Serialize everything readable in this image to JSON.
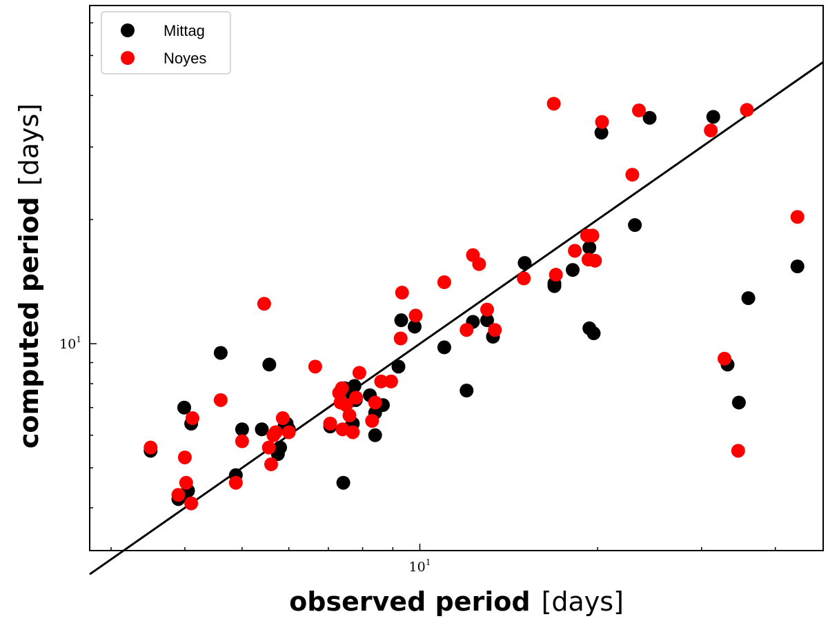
{
  "chart_data": {
    "type": "scatter",
    "title": "",
    "xlabel": "observed period",
    "xlabel_unit": "[days]",
    "ylabel": "computed period",
    "ylabel_unit": "[days]",
    "xscale": "log",
    "yscale": "log",
    "xlim": [
      2.76,
      48.2
    ],
    "ylim": [
      3.15,
      66.1
    ],
    "x_ticks": [
      {
        "value": 10,
        "base": "10",
        "exp": "1"
      }
    ],
    "y_ticks": [
      {
        "value": 10,
        "base": "10",
        "exp": "1"
      }
    ],
    "grid": false,
    "legend_position": "top-left",
    "fit_line": {
      "name": "y = x",
      "x": [
        2.76,
        48.2
      ],
      "y": [
        2.76,
        48.2
      ],
      "color": "#000000"
    },
    "series": [
      {
        "name": "Mittag",
        "color": "#000000",
        "points": [
          [
            3.5,
            5.5
          ],
          [
            3.9,
            4.2
          ],
          [
            4.0,
            4.3
          ],
          [
            4.05,
            4.4
          ],
          [
            3.99,
            7.0
          ],
          [
            4.1,
            6.4
          ],
          [
            4.6,
            9.5
          ],
          [
            4.88,
            4.8
          ],
          [
            5.0,
            6.2
          ],
          [
            5.4,
            6.2
          ],
          [
            5.56,
            8.9
          ],
          [
            5.75,
            5.4
          ],
          [
            5.8,
            5.6
          ],
          [
            5.9,
            6.3
          ],
          [
            5.95,
            6.4
          ],
          [
            6.0,
            6.2
          ],
          [
            7.05,
            6.4
          ],
          [
            7.05,
            6.3
          ],
          [
            7.42,
            4.6
          ],
          [
            7.46,
            7.8
          ],
          [
            7.65,
            6.3
          ],
          [
            7.6,
            7.7
          ],
          [
            7.68,
            7.3
          ],
          [
            7.7,
            6.4
          ],
          [
            7.79,
            7.3
          ],
          [
            7.75,
            7.9
          ],
          [
            8.23,
            7.5
          ],
          [
            8.4,
            6.0
          ],
          [
            8.4,
            6.8
          ],
          [
            8.53,
            7.1
          ],
          [
            8.66,
            7.1
          ],
          [
            9.2,
            8.8
          ],
          [
            9.3,
            11.4
          ],
          [
            9.8,
            11.0
          ],
          [
            11.0,
            9.8
          ],
          [
            12.0,
            7.7
          ],
          [
            12.3,
            11.3
          ],
          [
            13.0,
            11.4
          ],
          [
            13.3,
            10.4
          ],
          [
            15.05,
            15.7
          ],
          [
            16.9,
            13.8
          ],
          [
            16.9,
            14.0
          ],
          [
            18.15,
            15.1
          ],
          [
            19.37,
            10.9
          ],
          [
            19.37,
            17.1
          ],
          [
            19.7,
            10.6
          ],
          [
            20.3,
            32.5
          ],
          [
            23.13,
            19.4
          ],
          [
            24.5,
            35.3
          ],
          [
            31.4,
            35.5
          ],
          [
            33.2,
            8.9
          ],
          [
            34.7,
            7.2
          ],
          [
            36.0,
            12.9
          ],
          [
            43.6,
            15.4
          ]
        ]
      },
      {
        "name": "Noyes",
        "color": "#ff0000",
        "points": [
          [
            3.5,
            5.6
          ],
          [
            3.9,
            4.3
          ],
          [
            4.0,
            5.3
          ],
          [
            4.02,
            4.6
          ],
          [
            4.1,
            4.1
          ],
          [
            4.12,
            6.6
          ],
          [
            4.6,
            7.3
          ],
          [
            4.88,
            4.6
          ],
          [
            5.0,
            5.8
          ],
          [
            5.45,
            12.5
          ],
          [
            5.55,
            5.6
          ],
          [
            5.6,
            5.1
          ],
          [
            5.65,
            6.0
          ],
          [
            5.7,
            6.1
          ],
          [
            5.86,
            6.6
          ],
          [
            6.0,
            6.1
          ],
          [
            6.65,
            8.8
          ],
          [
            7.05,
            6.4
          ],
          [
            7.3,
            7.6
          ],
          [
            7.34,
            7.2
          ],
          [
            7.38,
            7.8
          ],
          [
            7.4,
            6.2
          ],
          [
            7.5,
            7.1
          ],
          [
            7.6,
            6.7
          ],
          [
            7.7,
            6.1
          ],
          [
            7.8,
            7.4
          ],
          [
            7.9,
            8.5
          ],
          [
            8.3,
            6.5
          ],
          [
            8.4,
            7.2
          ],
          [
            8.6,
            8.1
          ],
          [
            8.94,
            8.1
          ],
          [
            9.28,
            10.3
          ],
          [
            9.33,
            13.3
          ],
          [
            9.84,
            11.7
          ],
          [
            11.0,
            14.1
          ],
          [
            12.0,
            10.8
          ],
          [
            12.3,
            16.4
          ],
          [
            12.6,
            15.6
          ],
          [
            13.0,
            12.1
          ],
          [
            13.4,
            10.8
          ],
          [
            15.0,
            14.4
          ],
          [
            16.86,
            38.2
          ],
          [
            17.0,
            14.7
          ],
          [
            18.3,
            16.8
          ],
          [
            19.2,
            18.3
          ],
          [
            19.3,
            16.0
          ],
          [
            19.6,
            18.3
          ],
          [
            19.8,
            15.9
          ],
          [
            20.35,
            34.5
          ],
          [
            22.9,
            25.7
          ],
          [
            23.5,
            36.8
          ],
          [
            31.1,
            32.9
          ],
          [
            32.8,
            9.2
          ],
          [
            34.6,
            5.5
          ],
          [
            35.8,
            36.9
          ],
          [
            43.6,
            20.3
          ]
        ]
      }
    ]
  }
}
